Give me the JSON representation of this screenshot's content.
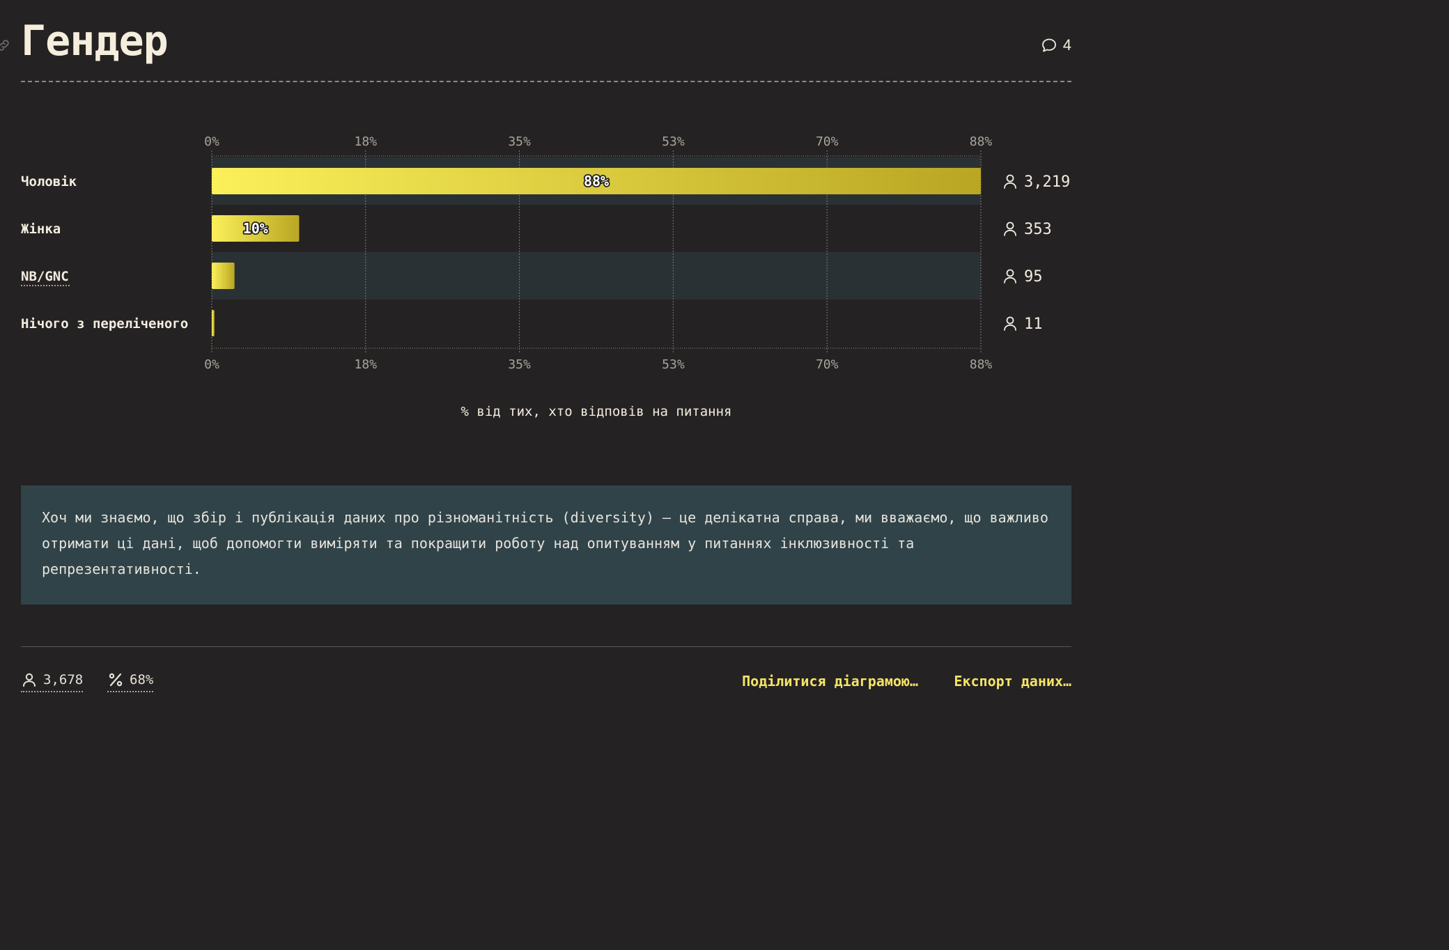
{
  "header": {
    "title": "Гендер",
    "comment_count": "4",
    "link_icon": "link-icon",
    "comment_icon": "speech-bubble-icon"
  },
  "chart_data": {
    "type": "bar",
    "orientation": "horizontal",
    "categories": [
      "Чоловік",
      "Жінка",
      "NB/GNC",
      "Нічого з переліченого"
    ],
    "values": [
      88,
      10,
      2.6,
      0.3
    ],
    "data_labels": [
      "88%",
      "10%",
      "",
      ""
    ],
    "counts": [
      "3,219",
      "353",
      "95",
      "11"
    ],
    "xlabel": "% від тих, хто відповів на питання",
    "x_ticks": [
      "0%",
      "18%",
      "35%",
      "53%",
      "70%",
      "88%"
    ],
    "x_tick_values": [
      0,
      17.6,
      35.2,
      52.8,
      70.4,
      88
    ],
    "xlim": [
      0,
      88
    ],
    "grid": true,
    "bar_gradient": [
      "#fbf05a",
      "#b9a623"
    ],
    "row_stripe_color": "#2a3134",
    "count_icon": "person-icon"
  },
  "note": {
    "text": "Хоч ми знаємо, що збір і публікація даних про різноманітність (diversity) — це делікатна справа, ми вважаємо, що важливо отримати ці дані, щоб допомогти виміряти та покращити роботу над опитуванням у питаннях інклюзивності та репрезентативності.",
    "background": "#304349"
  },
  "footer": {
    "respondents": "3,678",
    "response_rate": "68%",
    "respondents_icon": "person-icon",
    "rate_icon": "percent-icon",
    "share_label": "Поділитися діаграмою…",
    "export_label": "Експорт даних…",
    "accent": "#f4e466"
  }
}
